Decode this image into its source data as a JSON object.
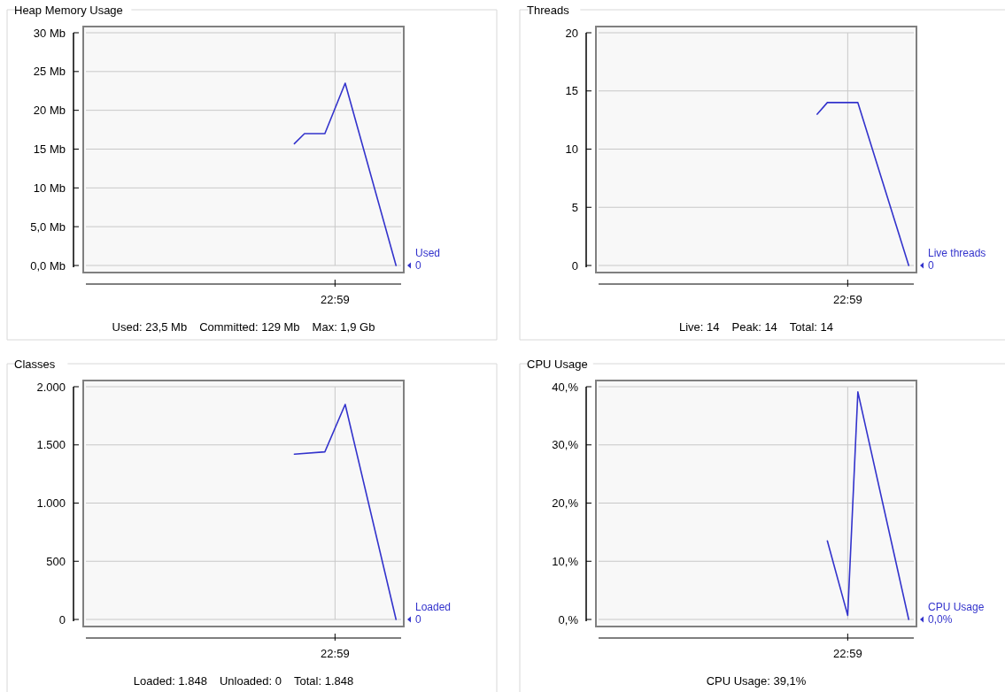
{
  "chart_data": [
    {
      "type": "line",
      "title": "Heap Memory Usage",
      "categories": [
        null,
        null,
        null,
        null,
        null,
        null,
        null,
        null,
        null,
        null,
        null,
        null,
        null,
        null,
        null,
        null,
        null,
        null,
        null,
        null,
        null,
        null,
        null,
        null,
        "22:59",
        null,
        null,
        null,
        null,
        null,
        null
      ],
      "series": [
        {
          "name": "Used",
          "color": "#3333cc",
          "values": [
            null,
            null,
            null,
            null,
            null,
            null,
            null,
            null,
            null,
            null,
            null,
            null,
            null,
            null,
            null,
            null,
            null,
            null,
            null,
            null,
            15.7,
            17,
            null,
            17,
            null,
            23.5,
            null,
            null,
            null,
            null,
            0
          ],
          "value_labels": [
            null,
            null,
            null,
            null,
            null,
            null,
            null,
            null,
            null,
            null,
            null,
            null,
            null,
            null,
            null,
            null,
            null,
            null,
            null,
            null,
            null,
            null,
            null,
            null,
            null,
            null,
            null,
            null,
            null,
            null,
            "0"
          ]
        }
      ],
      "ylim": [
        0,
        30
      ],
      "yticks": [
        {
          "value": 0,
          "label": "0,0 Mb"
        },
        {
          "value": 5,
          "label": "5,0 Mb"
        },
        {
          "value": 10,
          "label": "10 Mb"
        },
        {
          "value": 15,
          "label": "15 Mb"
        },
        {
          "value": 20,
          "label": "20 Mb"
        },
        {
          "value": 25,
          "label": "25 Mb"
        },
        {
          "value": 30,
          "label": "30 Mb"
        }
      ],
      "grid": true,
      "legend": false,
      "annotations": [
        "Used: 23,5 Mb",
        "Committed: 129 Mb",
        "Max: 1,9 Gb"
      ]
    },
    {
      "type": "line",
      "title": "Threads",
      "categories": [
        null,
        null,
        null,
        null,
        null,
        null,
        null,
        null,
        null,
        null,
        null,
        null,
        null,
        null,
        null,
        null,
        null,
        null,
        null,
        null,
        null,
        null,
        null,
        null,
        "22:59",
        null,
        null,
        null,
        null,
        null,
        null
      ],
      "series": [
        {
          "name": "Live threads",
          "color": "#3333cc",
          "values": [
            null,
            null,
            null,
            null,
            null,
            null,
            null,
            null,
            null,
            null,
            null,
            null,
            null,
            null,
            null,
            null,
            null,
            null,
            null,
            null,
            null,
            13,
            14,
            null,
            null,
            14,
            null,
            null,
            null,
            null,
            0
          ],
          "value_labels": [
            null,
            null,
            null,
            null,
            null,
            null,
            null,
            null,
            null,
            null,
            null,
            null,
            null,
            null,
            null,
            null,
            null,
            null,
            null,
            null,
            null,
            null,
            null,
            null,
            null,
            null,
            null,
            null,
            null,
            null,
            "0"
          ]
        }
      ],
      "ylim": [
        0,
        20
      ],
      "yticks": [
        {
          "value": 0,
          "label": "0"
        },
        {
          "value": 5,
          "label": "5"
        },
        {
          "value": 10,
          "label": "10"
        },
        {
          "value": 15,
          "label": "15"
        },
        {
          "value": 20,
          "label": "20"
        }
      ],
      "grid": true,
      "legend": false,
      "annotations": [
        "Live: 14",
        "Peak: 14",
        "Total: 14"
      ]
    },
    {
      "type": "line",
      "title": "Classes",
      "categories": [
        null,
        null,
        null,
        null,
        null,
        null,
        null,
        null,
        null,
        null,
        null,
        null,
        null,
        null,
        null,
        null,
        null,
        null,
        null,
        null,
        null,
        null,
        null,
        null,
        "22:59",
        null,
        null,
        null,
        null,
        null,
        null
      ],
      "series": [
        {
          "name": "Loaded",
          "color": "#3333cc",
          "values": [
            null,
            null,
            null,
            null,
            null,
            null,
            null,
            null,
            null,
            null,
            null,
            null,
            null,
            null,
            null,
            null,
            null,
            null,
            null,
            null,
            1420,
            null,
            null,
            1440,
            null,
            1848,
            null,
            null,
            null,
            null,
            0
          ],
          "value_labels": [
            null,
            null,
            null,
            null,
            null,
            null,
            null,
            null,
            null,
            null,
            null,
            null,
            null,
            null,
            null,
            null,
            null,
            null,
            null,
            null,
            null,
            null,
            null,
            null,
            null,
            null,
            null,
            null,
            null,
            null,
            "0"
          ]
        }
      ],
      "ylim": [
        0,
        2000
      ],
      "yticks": [
        {
          "value": 0,
          "label": "0"
        },
        {
          "value": 500,
          "label": "500"
        },
        {
          "value": 1000,
          "label": "1.000"
        },
        {
          "value": 1500,
          "label": "1.500"
        },
        {
          "value": 2000,
          "label": "2.000"
        }
      ],
      "grid": true,
      "legend": false,
      "annotations": [
        "Loaded: 1.848",
        "Unloaded: 0",
        "Total: 1.848"
      ]
    },
    {
      "type": "line",
      "title": "CPU Usage",
      "categories": [
        null,
        null,
        null,
        null,
        null,
        null,
        null,
        null,
        null,
        null,
        null,
        null,
        null,
        null,
        null,
        null,
        null,
        null,
        null,
        null,
        null,
        null,
        null,
        null,
        "22:59",
        null,
        null,
        null,
        null,
        null,
        null
      ],
      "series": [
        {
          "name": "CPU Usage",
          "color": "#3333cc",
          "values": [
            null,
            null,
            null,
            null,
            null,
            null,
            null,
            null,
            null,
            null,
            null,
            null,
            null,
            null,
            null,
            null,
            null,
            null,
            null,
            null,
            null,
            null,
            13.5,
            null,
            0.7,
            39.1,
            null,
            null,
            null,
            null,
            0
          ],
          "value_labels": [
            null,
            null,
            null,
            null,
            null,
            null,
            null,
            null,
            null,
            null,
            null,
            null,
            null,
            null,
            null,
            null,
            null,
            null,
            null,
            null,
            null,
            null,
            null,
            null,
            null,
            null,
            null,
            null,
            null,
            null,
            "0,0%"
          ]
        }
      ],
      "ylim": [
        0,
        40
      ],
      "yticks": [
        {
          "value": 0,
          "label": "0,%"
        },
        {
          "value": 10,
          "label": "10,%"
        },
        {
          "value": 20,
          "label": "20,%"
        },
        {
          "value": 30,
          "label": "30,%"
        },
        {
          "value": 40,
          "label": "40,%"
        }
      ],
      "grid": true,
      "legend": false,
      "annotations": [
        "CPU Usage: 39,1%"
      ]
    }
  ]
}
